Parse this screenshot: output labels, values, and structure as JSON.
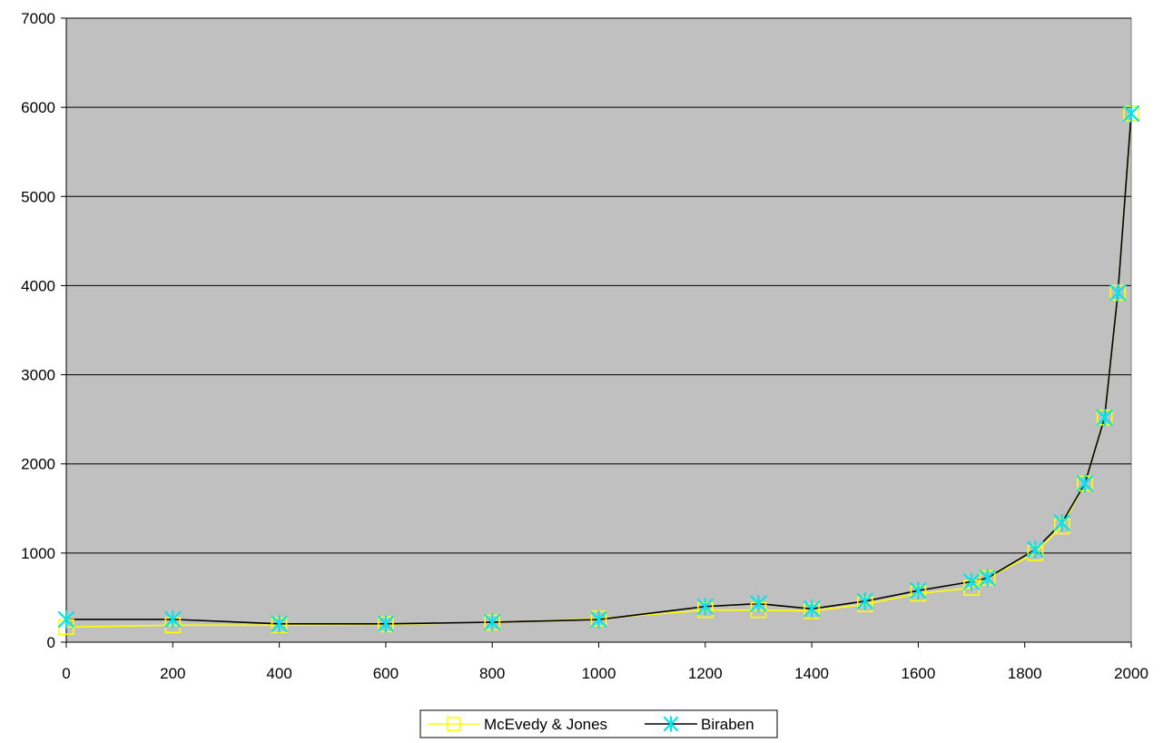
{
  "chart_data": {
    "type": "line",
    "title": "",
    "xlabel": "",
    "ylabel": "",
    "xlim": [
      0,
      2000
    ],
    "ylim": [
      0,
      7000
    ],
    "x_ticks": [
      0,
      200,
      400,
      600,
      800,
      1000,
      1200,
      1400,
      1600,
      1800,
      2000
    ],
    "y_ticks": [
      0,
      1000,
      2000,
      3000,
      4000,
      5000,
      6000,
      7000
    ],
    "x_tick_labels": [
      "0",
      "200",
      "400",
      "600",
      "800",
      "1000",
      "1200",
      "1400",
      "1600",
      "1800",
      "2000"
    ],
    "y_tick_labels": [
      "0",
      "1000",
      "2000",
      "3000",
      "4000",
      "5000",
      "6000",
      "7000"
    ],
    "grid": true,
    "legend_position": "bottom",
    "plot_background": "#c0c0c0",
    "series": [
      {
        "name": "McEvedy & Jones",
        "line_color": "#ffff00",
        "marker": "square",
        "marker_color": "#ffff00",
        "points": [
          {
            "x": 0,
            "y": 170
          },
          {
            "x": 200,
            "y": 190
          },
          {
            "x": 400,
            "y": 190
          },
          {
            "x": 600,
            "y": 200
          },
          {
            "x": 800,
            "y": 220
          },
          {
            "x": 1000,
            "y": 265
          },
          {
            "x": 1200,
            "y": 360
          },
          {
            "x": 1300,
            "y": 360
          },
          {
            "x": 1400,
            "y": 350
          },
          {
            "x": 1500,
            "y": 425
          },
          {
            "x": 1600,
            "y": 545
          },
          {
            "x": 1700,
            "y": 610
          },
          {
            "x": 1730,
            "y": 720
          },
          {
            "x": 1820,
            "y": 1000
          },
          {
            "x": 1870,
            "y": 1300
          },
          {
            "x": 1913,
            "y": 1780
          },
          {
            "x": 1950,
            "y": 2520
          },
          {
            "x": 1975,
            "y": 3920
          },
          {
            "x": 2000,
            "y": 5930
          }
        ]
      },
      {
        "name": "Biraben",
        "line_color": "#000000",
        "marker": "asterisk",
        "marker_color": "#00e5ee",
        "points": [
          {
            "x": 0,
            "y": 255
          },
          {
            "x": 200,
            "y": 256
          },
          {
            "x": 400,
            "y": 206
          },
          {
            "x": 600,
            "y": 206
          },
          {
            "x": 800,
            "y": 224
          },
          {
            "x": 1000,
            "y": 254
          },
          {
            "x": 1200,
            "y": 400
          },
          {
            "x": 1300,
            "y": 432
          },
          {
            "x": 1400,
            "y": 374
          },
          {
            "x": 1500,
            "y": 460
          },
          {
            "x": 1600,
            "y": 579
          },
          {
            "x": 1700,
            "y": 679
          },
          {
            "x": 1730,
            "y": 720
          },
          {
            "x": 1820,
            "y": 1040
          },
          {
            "x": 1870,
            "y": 1340
          },
          {
            "x": 1913,
            "y": 1780
          },
          {
            "x": 1950,
            "y": 2520
          },
          {
            "x": 1975,
            "y": 3920
          },
          {
            "x": 2000,
            "y": 5930
          }
        ]
      }
    ]
  }
}
